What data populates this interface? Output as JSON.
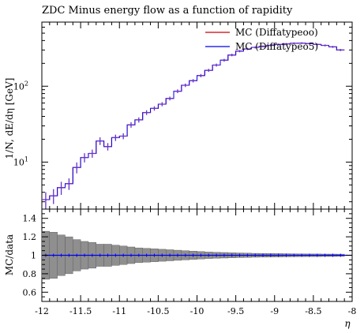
{
  "chart_data": {
    "type": "line",
    "title": "ZDC Minus energy flow as a function of rapidity",
    "xlabel": "η",
    "ylabel": "1/N, dE/dη [GeV]",
    "ratio_ylabel": "MC/data",
    "xlim": [
      -12,
      -8
    ],
    "ylim": [
      2.4,
      700
    ],
    "yscale": "log",
    "ratio_ylim": [
      0.5,
      1.5
    ],
    "grid": false,
    "legend_position": "top-right",
    "x_ticks": [
      "-12",
      "-11.5",
      "-11",
      "-10.5",
      "-10",
      "-9.5",
      "-9",
      "-8.5",
      "-8"
    ],
    "y_ticks": [
      "10^1",
      "10^2"
    ],
    "ratio_y_ticks": [
      "0.6",
      "0.8",
      "1",
      "1.2",
      "1.4"
    ],
    "colors": {
      "series_1": "#cc0000",
      "series_2": "#0000ee",
      "band": "#8f8f8f",
      "data": "#6633cc"
    },
    "series": [
      {
        "name": "MC (Diffatypeoo)"
      },
      {
        "name": "MC (Diffatypeo5)"
      }
    ],
    "points": {
      "x": [
        -11.95,
        -11.85,
        -11.75,
        -11.65,
        -11.55,
        -11.45,
        -11.35,
        -11.25,
        -11.15,
        -11.05,
        -10.95,
        -10.85,
        -10.75,
        -10.65,
        -10.55,
        -10.45,
        -10.35,
        -10.25,
        -10.15,
        -10.05,
        -9.95,
        -9.85,
        -9.75,
        -9.65,
        -9.55,
        -9.45,
        -9.35,
        -9.25,
        -9.15,
        -9.05,
        -8.95,
        -8.85,
        -8.75,
        -8.65,
        -8.55,
        -8.45,
        -8.35,
        -8.25,
        -8.15
      ],
      "y": [
        3.2,
        3.6,
        4.6,
        5.2,
        8.5,
        11.5,
        13,
        19,
        16,
        21,
        22,
        31,
        36,
        45,
        51,
        58,
        69,
        86,
        103,
        118,
        138,
        162,
        190,
        220,
        258,
        290,
        310,
        325,
        335,
        345,
        355,
        362,
        368,
        370,
        365,
        355,
        345,
        330,
        300
      ],
      "y_err": [
        0.8,
        0.8,
        0.9,
        0.9,
        1.4,
        1.6,
        1.6,
        2.2,
        1.8,
        2.0,
        2.0,
        2.6,
        2.8,
        3.2,
        3.4,
        3.6,
        4.0,
        4.8,
        5.4,
        6.0,
        6.8,
        7.6,
        8.6,
        9.6,
        10,
        10,
        10,
        10,
        10,
        10,
        10,
        10,
        10,
        10,
        10,
        10,
        10,
        10,
        10
      ],
      "mc": [
        3.2,
        3.6,
        4.6,
        5.2,
        8.5,
        11.5,
        13,
        19,
        16,
        21,
        22,
        31,
        36,
        45,
        51,
        58,
        69,
        86,
        103,
        118,
        138,
        162,
        190,
        220,
        258,
        290,
        310,
        325,
        335,
        345,
        355,
        362,
        368,
        370,
        365,
        355,
        345,
        330,
        300
      ],
      "ratio_err": [
        0.26,
        0.25,
        0.22,
        0.2,
        0.17,
        0.15,
        0.14,
        0.12,
        0.12,
        0.11,
        0.1,
        0.09,
        0.08,
        0.075,
        0.07,
        0.065,
        0.06,
        0.055,
        0.05,
        0.045,
        0.04,
        0.035,
        0.032,
        0.03,
        0.027,
        0.025,
        0.023,
        0.021,
        0.02,
        0.019,
        0.018,
        0.017,
        0.016,
        0.015,
        0.014,
        0.014,
        0.013,
        0.013,
        0.012
      ]
    }
  }
}
